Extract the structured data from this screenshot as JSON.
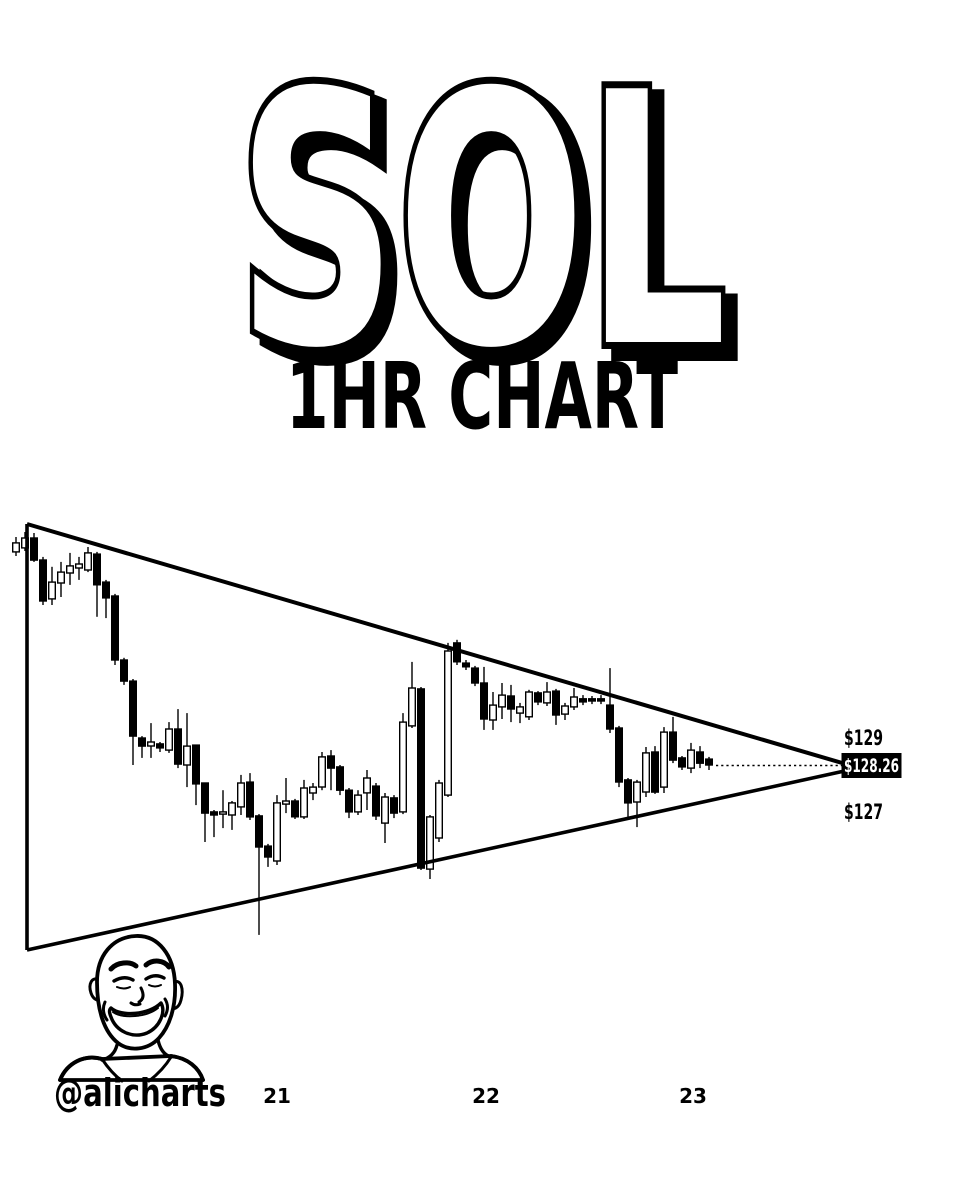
{
  "page": {
    "background": "#ffffff",
    "ink": "#000000"
  },
  "header": {
    "title": "SOL",
    "subtitle": "1HR CHART"
  },
  "attribution": {
    "handle": "@alicharts",
    "avatar": "smiling-bald-man-line-art"
  },
  "price_box": {
    "bg": "#000000",
    "text_color": "#ffffff"
  },
  "chart_data": {
    "type": "candlestick",
    "symbol": "SOL",
    "timeframe": "1HR",
    "pattern": "symmetrical-triangle-converging-trendlines",
    "current_price": 128.26,
    "bullish_color": "#ffffff",
    "bearish_color": "#000000",
    "x_axis": {
      "tick_labels": [
        "21",
        "22",
        "23"
      ]
    },
    "y_axis": {
      "labels": [
        "$129",
        "$128.26",
        "$127"
      ],
      "approx_range": [
        122.5,
        136.0
      ]
    },
    "candles_ohlc": [
      [
        135.12,
        135.6,
        134.99,
        135.41
      ],
      [
        135.25,
        135.76,
        135.15,
        135.57
      ],
      [
        135.57,
        135.73,
        134.8,
        134.86
      ],
      [
        134.86,
        134.96,
        133.41,
        133.54
      ],
      [
        133.61,
        134.64,
        133.41,
        134.15
      ],
      [
        134.12,
        134.8,
        133.67,
        134.47
      ],
      [
        134.44,
        135.09,
        134.06,
        134.67
      ],
      [
        134.6,
        134.96,
        134.22,
        134.73
      ],
      [
        134.54,
        135.28,
        134.47,
        135.09
      ],
      [
        135.05,
        135.12,
        133.03,
        134.06
      ],
      [
        134.15,
        134.22,
        132.99,
        133.64
      ],
      [
        133.7,
        133.77,
        131.48,
        131.64
      ],
      [
        131.64,
        131.71,
        130.84,
        130.96
      ],
      [
        130.96,
        131.03,
        128.26,
        129.19
      ],
      [
        129.13,
        129.19,
        128.49,
        128.87
      ],
      [
        128.87,
        129.61,
        128.49,
        129.0
      ],
      [
        128.94,
        129.0,
        128.68,
        128.81
      ],
      [
        128.74,
        129.64,
        128.65,
        129.42
      ],
      [
        129.42,
        130.06,
        128.16,
        128.29
      ],
      [
        128.26,
        129.93,
        127.55,
        128.87
      ],
      [
        128.9,
        128.9,
        126.97,
        127.65
      ],
      [
        127.68,
        127.68,
        125.78,
        126.71
      ],
      [
        126.75,
        126.81,
        125.94,
        126.65
      ],
      [
        126.68,
        127.45,
        126.23,
        126.75
      ],
      [
        126.65,
        127.1,
        126.17,
        127.04
      ],
      [
        126.91,
        127.94,
        126.65,
        127.68
      ],
      [
        127.71,
        128.0,
        126.49,
        126.59
      ],
      [
        126.62,
        126.68,
        122.79,
        125.62
      ],
      [
        125.65,
        125.72,
        124.98,
        125.3
      ],
      [
        125.17,
        127.29,
        125.04,
        127.04
      ],
      [
        127.0,
        127.84,
        126.71,
        127.1
      ],
      [
        127.1,
        127.17,
        126.52,
        126.59
      ],
      [
        126.59,
        127.78,
        126.52,
        127.52
      ],
      [
        127.36,
        127.68,
        127.13,
        127.55
      ],
      [
        127.55,
        128.68,
        127.45,
        128.52
      ],
      [
        128.55,
        128.74,
        127.45,
        128.16
      ],
      [
        128.2,
        128.26,
        127.29,
        127.45
      ],
      [
        127.45,
        127.52,
        126.55,
        126.75
      ],
      [
        126.75,
        127.45,
        126.65,
        127.29
      ],
      [
        127.36,
        128.1,
        126.81,
        127.84
      ],
      [
        127.58,
        127.68,
        126.49,
        126.62
      ],
      [
        126.39,
        127.36,
        125.75,
        127.23
      ],
      [
        127.2,
        127.29,
        126.55,
        126.71
      ],
      [
        126.75,
        129.93,
        126.68,
        129.64
      ],
      [
        129.52,
        131.58,
        129.45,
        130.74
      ],
      [
        130.71,
        130.77,
        124.88,
        124.94
      ],
      [
        124.91,
        126.65,
        124.59,
        126.59
      ],
      [
        125.91,
        127.78,
        125.78,
        127.68
      ],
      [
        127.29,
        132.19,
        127.23,
        131.93
      ],
      [
        132.19,
        132.29,
        131.48,
        131.58
      ],
      [
        131.54,
        131.64,
        131.32,
        131.42
      ],
      [
        131.38,
        131.45,
        130.8,
        130.9
      ],
      [
        130.9,
        131.42,
        129.39,
        129.74
      ],
      [
        129.71,
        130.61,
        129.39,
        130.19
      ],
      [
        130.13,
        130.9,
        129.74,
        130.51
      ],
      [
        130.48,
        130.84,
        129.64,
        130.06
      ],
      [
        129.93,
        130.26,
        129.61,
        130.13
      ],
      [
        129.81,
        130.68,
        129.71,
        130.61
      ],
      [
        130.58,
        130.64,
        130.19,
        130.29
      ],
      [
        130.26,
        130.93,
        130.16,
        130.61
      ],
      [
        130.64,
        130.71,
        129.55,
        129.87
      ],
      [
        129.9,
        130.26,
        129.71,
        130.16
      ],
      [
        130.13,
        130.74,
        130.03,
        130.45
      ],
      [
        130.39,
        130.51,
        130.19,
        130.29
      ],
      [
        130.39,
        130.48,
        130.22,
        130.32
      ],
      [
        130.39,
        130.51,
        130.22,
        130.32
      ],
      [
        130.19,
        131.38,
        129.29,
        129.42
      ],
      [
        129.45,
        129.52,
        127.55,
        127.71
      ],
      [
        127.78,
        127.84,
        126.59,
        127.04
      ],
      [
        127.07,
        127.78,
        126.26,
        127.71
      ],
      [
        127.39,
        128.84,
        127.23,
        128.65
      ],
      [
        128.68,
        128.87,
        127.33,
        127.39
      ],
      [
        127.55,
        129.48,
        127.36,
        129.32
      ],
      [
        129.32,
        129.81,
        128.32,
        128.42
      ],
      [
        128.49,
        128.55,
        128.1,
        128.2
      ],
      [
        128.16,
        128.97,
        128.0,
        128.74
      ],
      [
        128.68,
        128.87,
        128.16,
        128.32
      ],
      [
        128.45,
        128.52,
        128.1,
        128.26
      ]
    ]
  }
}
